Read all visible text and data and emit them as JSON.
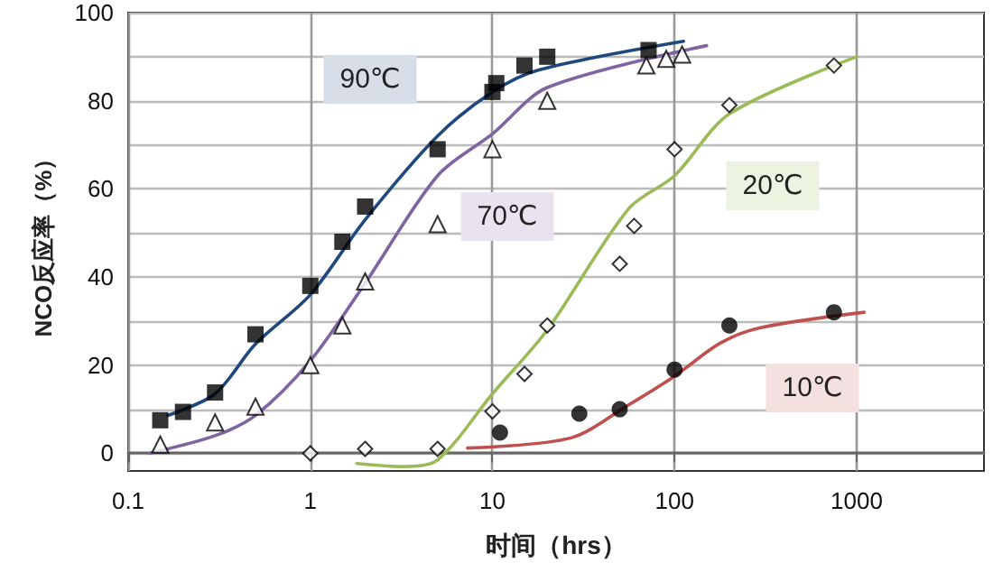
{
  "chart_data": {
    "type": "scatter",
    "xlabel": "时间（hrs）",
    "ylabel": "NCO反应率（%）",
    "log": "x",
    "grid": true,
    "xlim": [
      0.1,
      5000
    ],
    "xticks": [
      0.1,
      1,
      10,
      100,
      1000
    ],
    "ylim": [
      -4,
      100
    ],
    "yticks": [
      0,
      {
        "value": 10,
        "label": null
      },
      20,
      {
        "value": 30,
        "label": null
      },
      40,
      {
        "value": 50,
        "label": null
      },
      60,
      {
        "value": 70,
        "label": null
      },
      80,
      {
        "value": 90,
        "label": null
      },
      100
    ],
    "series": [
      {
        "type": "line",
        "color": "#1f497d",
        "marker": "none",
        "x": [
          0.165,
          0.3,
          0.5,
          1,
          2,
          5,
          10,
          18,
          112
        ],
        "values": [
          8.6,
          13.5,
          24.8,
          36,
          53,
          72,
          82,
          87,
          93.5
        ]
      },
      {
        "type": "line",
        "color": "#8064a2",
        "marker": "none",
        "x": [
          0.13,
          0.3,
          0.5,
          1,
          2,
          5,
          10,
          20,
          150
        ],
        "values": [
          0,
          4,
          8.6,
          21,
          38.6,
          63,
          72.5,
          83,
          92.5
        ]
      },
      {
        "type": "line",
        "color": "#9bbb59",
        "marker": "none",
        "x": [
          1.8,
          3.2,
          5,
          10,
          20,
          56,
          100,
          200,
          1000
        ],
        "values": [
          -2.3,
          -3,
          -1.5,
          13.5,
          28,
          55.5,
          63,
          77,
          90
        ]
      },
      {
        "type": "line",
        "color": "#c0504d",
        "marker": "none",
        "x": [
          7.3,
          27,
          56,
          100,
          178,
          296,
          1100
        ],
        "values": [
          1.2,
          3.5,
          11,
          17.5,
          25,
          28.5,
          32
        ]
      },
      {
        "color": "#000000",
        "marker": "square",
        "x": [
          0.15,
          0.2,
          0.3,
          0.5,
          1,
          1.5,
          2,
          5,
          10,
          10.5,
          15,
          20,
          72
        ],
        "values": [
          7.5,
          9.4,
          13.8,
          27,
          38,
          48,
          56,
          69,
          82,
          84,
          88,
          90,
          91.5
        ]
      },
      {
        "color": "#000000",
        "marker": "triangle",
        "x": [
          0.15,
          0.3,
          0.5,
          1,
          1.5,
          2,
          5,
          10,
          20,
          70,
          90,
          110
        ],
        "values": [
          2,
          7,
          10.6,
          20,
          29,
          39,
          52,
          69,
          80,
          88,
          89.5,
          90.5
        ]
      },
      {
        "color": "#000000",
        "marker": "diamond",
        "x": [
          1,
          2,
          5,
          10,
          15,
          20,
          50,
          60,
          100,
          200,
          750
        ],
        "values": [
          0,
          1,
          1,
          9.5,
          18,
          29,
          43,
          51.6,
          69,
          79,
          88
        ]
      },
      {
        "color": "#000000",
        "marker": "circle",
        "x": [
          11,
          30,
          50,
          100,
          200,
          750
        ],
        "values": [
          4.7,
          9,
          10,
          19,
          29,
          32
        ]
      }
    ],
    "annotations": [
      "90℃",
      "70℃",
      "20℃",
      "10℃"
    ]
  }
}
